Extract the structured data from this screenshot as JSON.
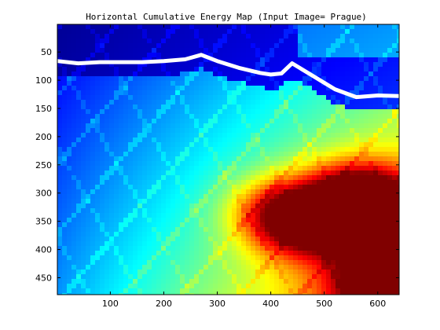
{
  "chart_data": {
    "type": "heatmap",
    "title": "Horizontal Cumulative Energy Map (Input Image= Prague)",
    "xlabel": "",
    "ylabel": "",
    "xlim": [
      1,
      640
    ],
    "ylim": [
      480,
      1
    ],
    "y_axis_direction": "top-to-bottom",
    "x_ticks": [
      100,
      200,
      300,
      400,
      500,
      600
    ],
    "y_ticks": [
      50,
      100,
      150,
      200,
      250,
      300,
      350,
      400,
      450
    ],
    "colormap": "jet",
    "colormap_stops": [
      "#00008f",
      "#0000ff",
      "#00ffff",
      "#ffff00",
      "#ff0000",
      "#800000"
    ],
    "grid": false,
    "legend": "none",
    "seam": {
      "name": "",
      "color": "#ffffff",
      "x": [
        1,
        40,
        80,
        120,
        160,
        200,
        240,
        270,
        300,
        340,
        380,
        400,
        420,
        440,
        480,
        520,
        560,
        600,
        640
      ],
      "y": [
        66,
        70,
        68,
        68,
        68,
        66,
        63,
        55,
        66,
        78,
        87,
        90,
        88,
        70,
        93,
        116,
        130,
        127,
        128
      ]
    },
    "energy_field": {
      "description_units": "relative energy 0-1",
      "hot_spots": [
        {
          "x": 610,
          "y": 350,
          "value": 1.0
        },
        {
          "x": 610,
          "y": 460,
          "value": 0.95
        },
        {
          "x": 560,
          "y": 300,
          "value": 0.85
        },
        {
          "x": 470,
          "y": 360,
          "value": 0.72
        },
        {
          "x": 420,
          "y": 330,
          "value": 0.65
        }
      ]
    }
  }
}
